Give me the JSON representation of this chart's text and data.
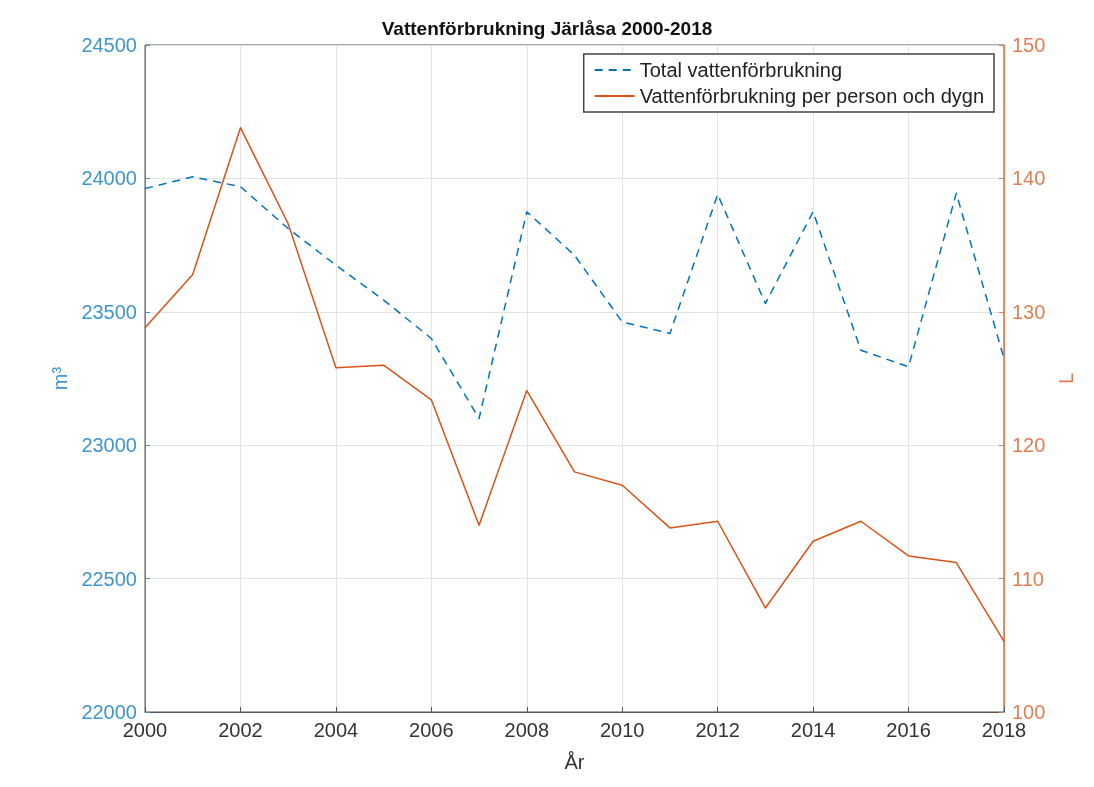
{
  "chart_data": {
    "type": "line",
    "title": "Vattenförbrukning Järlåsa 2000-2018",
    "xlabel": "År",
    "ylabel": "m³",
    "y2label": "L",
    "x": [
      2000,
      2001,
      2002,
      2003,
      2004,
      2005,
      2006,
      2007,
      2008,
      2009,
      2010,
      2011,
      2012,
      2013,
      2014,
      2015,
      2016,
      2017,
      2018
    ],
    "series": [
      {
        "name": "Total vattenförbrukning",
        "color": "#0072bd",
        "line_style": "dashed",
        "values": [
          23962,
          24006,
          23969,
          23812,
          23675,
          23544,
          23400,
          23100,
          23875,
          23712,
          23462,
          23419,
          23940,
          23531,
          23875,
          23356,
          23294,
          23944,
          23325
        ]
      },
      {
        "name": "Vattenförbrukning per person och dygn",
        "color": "#d95319",
        "line_style": "solid",
        "axis": "y2",
        "values": [
          128.8,
          132.8,
          143.8,
          136.6,
          125.8,
          126,
          123.4,
          114,
          124.1,
          118,
          117,
          113.8,
          114.3,
          107.8,
          112.8,
          114.3,
          111.7,
          111.2,
          105.3
        ]
      }
    ],
    "xlim": [
      2000,
      2018
    ],
    "xticks": [
      2000,
      2002,
      2004,
      2006,
      2008,
      2010,
      2012,
      2014,
      2016,
      2018
    ],
    "ylim": [
      22000,
      24500
    ],
    "yticks": [
      22000,
      22500,
      23000,
      23500,
      24000,
      24500
    ],
    "y2lim": [
      100,
      150
    ],
    "y2ticks": [
      100,
      110,
      120,
      130,
      140,
      150
    ],
    "grid": true,
    "legend": "top right",
    "marker": "none"
  }
}
